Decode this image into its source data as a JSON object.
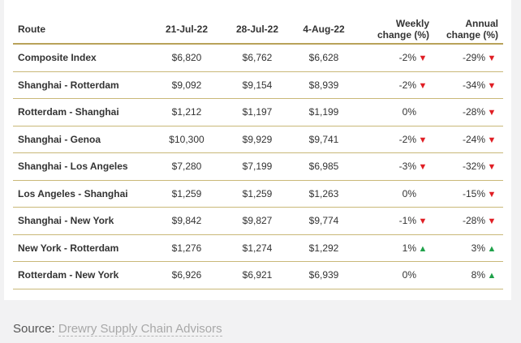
{
  "table": {
    "headers": {
      "route": "Route",
      "d1": "21-Jul-22",
      "d2": "28-Jul-22",
      "d3": "4-Aug-22",
      "weekly_line1": "Weekly",
      "weekly_line2": "change (%)",
      "annual_line1": "Annual",
      "annual_line2": "change (%)"
    },
    "rows": [
      {
        "route": "Composite Index",
        "d1": "$6,820",
        "d2": "$6,762",
        "d3": "$6,628",
        "weekly": "-2%",
        "weekly_dir": "down",
        "annual": "-29%",
        "annual_dir": "down"
      },
      {
        "route": "Shanghai - Rotterdam",
        "d1": "$9,092",
        "d2": "$9,154",
        "d3": "$8,939",
        "weekly": "-2%",
        "weekly_dir": "down",
        "annual": "-34%",
        "annual_dir": "down"
      },
      {
        "route": "Rotterdam - Shanghai",
        "d1": "$1,212",
        "d2": "$1,197",
        "d3": "$1,199",
        "weekly": "0%",
        "weekly_dir": "none",
        "annual": "-28%",
        "annual_dir": "down"
      },
      {
        "route": "Shanghai - Genoa",
        "d1": "$10,300",
        "d2": "$9,929",
        "d3": "$9,741",
        "weekly": "-2%",
        "weekly_dir": "down",
        "annual": "-24%",
        "annual_dir": "down"
      },
      {
        "route": "Shanghai - Los Angeles",
        "d1": "$7,280",
        "d2": "$7,199",
        "d3": "$6,985",
        "weekly": "-3%",
        "weekly_dir": "down",
        "annual": "-32%",
        "annual_dir": "down"
      },
      {
        "route": "Los Angeles - Shanghai",
        "d1": "$1,259",
        "d2": "$1,259",
        "d3": "$1,263",
        "weekly": "0%",
        "weekly_dir": "none",
        "annual": "-15%",
        "annual_dir": "down"
      },
      {
        "route": "Shanghai - New York",
        "d1": "$9,842",
        "d2": "$9,827",
        "d3": "$9,774",
        "weekly": "-1%",
        "weekly_dir": "down",
        "annual": "-28%",
        "annual_dir": "down"
      },
      {
        "route": "New York - Rotterdam",
        "d1": "$1,276",
        "d2": "$1,274",
        "d3": "$1,292",
        "weekly": "1%",
        "weekly_dir": "up",
        "annual": "3%",
        "annual_dir": "up"
      },
      {
        "route": "Rotterdam - New York",
        "d1": "$6,926",
        "d2": "$6,921",
        "d3": "$6,939",
        "weekly": "0%",
        "weekly_dir": "none",
        "annual": "8%",
        "annual_dir": "up"
      }
    ]
  },
  "source": {
    "label": "Source:",
    "link_text": "Drewry Supply Chain Advisors"
  },
  "colors": {
    "down": "#e01e24",
    "up": "#1fa14a",
    "rule": "#b8a25a"
  },
  "icons": {
    "down": "triangle-down-icon",
    "up": "triangle-up-icon"
  }
}
